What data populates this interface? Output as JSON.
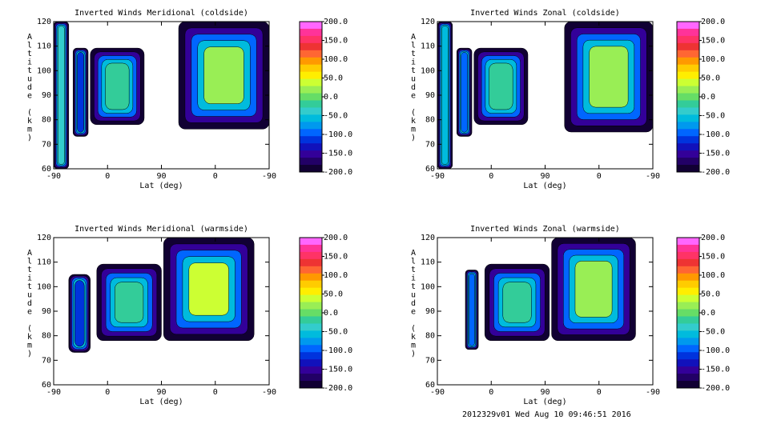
{
  "footer": "2012329v01 Wed Aug 10 09:46:51 2016",
  "colorbar": {
    "labels": [
      "200.0",
      "150.0",
      "100.0",
      "50.0",
      "0.0",
      "-50.0",
      "-100.0",
      "-150.0",
      "-200.0"
    ],
    "colors": [
      "#ff66ff",
      "#ff3399",
      "#ff3366",
      "#ee3333",
      "#ff6633",
      "#ff9900",
      "#ffcc00",
      "#ffee00",
      "#ccff33",
      "#99ee55",
      "#66dd66",
      "#33cc99",
      "#33cccc",
      "#00bbdd",
      "#0099ee",
      "#0066ff",
      "#0033dd",
      "#1111bb",
      "#330099",
      "#220066",
      "#110033"
    ]
  },
  "chart_data": [
    {
      "type": "heatmap",
      "title": "Inverted Winds Meridional (coldside)",
      "xlabel": "Lat (deg)",
      "ylabel": "Altitude (km)",
      "xticks": [
        "-90",
        "0",
        "90",
        "0",
        "-90"
      ],
      "yticks": [
        "60",
        "70",
        "80",
        "90",
        "100",
        "110",
        "120"
      ],
      "ylim": [
        60,
        120
      ],
      "zlim": [
        -200,
        200
      ]
    },
    {
      "type": "heatmap",
      "title": "Inverted Winds Zonal (coldside)",
      "xlabel": "Lat (deg)",
      "ylabel": "Altitude (km)",
      "xticks": [
        "-90",
        "0",
        "90",
        "0",
        "-90"
      ],
      "yticks": [
        "60",
        "70",
        "80",
        "90",
        "100",
        "110",
        "120"
      ],
      "ylim": [
        60,
        120
      ],
      "zlim": [
        -200,
        200
      ]
    },
    {
      "type": "heatmap",
      "title": "Inverted Winds Meridional (warmside)",
      "xlabel": "Lat (deg)",
      "ylabel": "Altitude (km)",
      "xticks": [
        "-90",
        "0",
        "90",
        "0",
        "-90"
      ],
      "yticks": [
        "60",
        "70",
        "80",
        "90",
        "100",
        "110",
        "120"
      ],
      "ylim": [
        60,
        120
      ],
      "zlim": [
        -200,
        200
      ]
    },
    {
      "type": "heatmap",
      "title": "Inverted Winds Zonal (warmside)",
      "xlabel": "Lat (deg)",
      "ylabel": "Altitude (km)",
      "xticks": [
        "-90",
        "0",
        "90",
        "0",
        "-90"
      ],
      "yticks": [
        "60",
        "70",
        "80",
        "90",
        "100",
        "110",
        "120"
      ],
      "ylim": [
        60,
        120
      ],
      "zlim": [
        -200,
        200
      ]
    }
  ]
}
